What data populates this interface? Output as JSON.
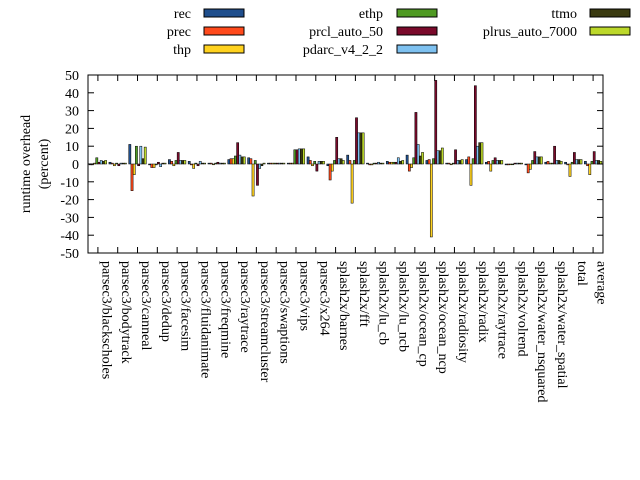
{
  "chart_data": {
    "type": "bar",
    "title": "",
    "xlabel": "",
    "ylabel": "runtime overhead (percent)",
    "ylabel_lines": [
      "runtime overhead",
      "(percent)"
    ],
    "ylim": [
      -50,
      50
    ],
    "yticks": [
      -50,
      -40,
      -30,
      -20,
      -10,
      0,
      10,
      20,
      30,
      40,
      50
    ],
    "grid": false,
    "legend_position": "top",
    "categories": [
      "parsec3/blackscholes",
      "parsec3/bodytrack",
      "parsec3/canneal",
      "parsec3/dedup",
      "parsec3/facesim",
      "parsec3/fluidanimate",
      "parsec3/freqmine",
      "parsec3/raytrace",
      "parsec3/streamcluster",
      "parsec3/swaptions",
      "parsec3/vips",
      "parsec3/x264",
      "splash2x/barnes",
      "splash2x/fft",
      "splash2x/lu_cb",
      "splash2x/lu_ncb",
      "splash2x/ocean_cp",
      "splash2x/ocean_ncp",
      "splash2x/radiosity",
      "splash2x/radix",
      "splash2x/raytrace",
      "splash2x/volrend",
      "splash2x/water_nsquared",
      "splash2x/water_spatial",
      "total",
      "average"
    ],
    "series": [
      {
        "name": "rec",
        "color": "#1f4e8c",
        "values": [
          -0.5,
          1,
          11,
          -0.5,
          2.5,
          1.5,
          0.5,
          2.5,
          3.5,
          0.5,
          0.5,
          4,
          -1,
          5,
          0.5,
          1.5,
          5,
          2,
          0.5,
          2.5,
          1,
          -0.5,
          -0.5,
          1,
          1,
          1.5
        ]
      },
      {
        "name": "prec",
        "color": "#ff4a1c",
        "values": [
          -0.5,
          0.5,
          -15,
          -2,
          1.5,
          -0.5,
          0.5,
          3,
          3,
          0.5,
          0.5,
          2,
          -9,
          2,
          -0.5,
          1,
          -4,
          2.5,
          0.5,
          4,
          1.5,
          -0.5,
          -5,
          1.5,
          -0.5,
          -1
        ]
      },
      {
        "name": "thp",
        "color": "#ffd21f",
        "values": [
          0.5,
          -1,
          -6,
          -2,
          -1,
          -2.5,
          0,
          3,
          -18,
          0.5,
          0.5,
          -1,
          -4,
          -22,
          -0.5,
          1,
          -2,
          -41,
          0,
          -12,
          -4,
          0,
          -3,
          0.5,
          -7,
          -6
        ]
      },
      {
        "name": "ethp",
        "color": "#4f9a23",
        "values": [
          3.5,
          0.5,
          10,
          -0.5,
          2,
          0.5,
          0.5,
          4.5,
          2,
          0.5,
          8,
          1.5,
          2,
          2,
          0.5,
          1,
          3.5,
          3,
          0.5,
          3,
          2,
          0,
          2,
          0.5,
          1,
          1.5
        ]
      },
      {
        "name": "prcl_auto_50",
        "color": "#7a0a2b",
        "values": [
          1,
          -1,
          -1,
          1,
          6.5,
          -1,
          1,
          12,
          -12,
          0.5,
          8,
          -4,
          15,
          26,
          0.5,
          1,
          29,
          47,
          8,
          44,
          3.5,
          0.5,
          7,
          10,
          6.5,
          7
        ]
      },
      {
        "name": "pdarc_v4_2_2",
        "color": "#7ec1f0",
        "values": [
          2,
          0.5,
          10,
          -1.5,
          2,
          1.5,
          0.5,
          5,
          -2.5,
          0.5,
          8.5,
          1.5,
          3,
          17.5,
          1,
          3.5,
          11,
          7.5,
          2,
          10,
          2,
          0.5,
          4,
          2,
          2.5,
          2
        ]
      },
      {
        "name": "ttmo",
        "color": "#3a3a10",
        "values": [
          1.5,
          0.5,
          3,
          0.5,
          2,
          0.5,
          0.5,
          4,
          -1,
          0.5,
          8.5,
          1.5,
          3,
          17.5,
          0.5,
          1.5,
          4.5,
          7.5,
          2,
          12,
          2,
          0.5,
          4,
          2,
          2.5,
          2
        ]
      },
      {
        "name": "plrus_auto_7000",
        "color": "#bcd82a",
        "values": [
          2,
          0.5,
          9.5,
          0.5,
          2,
          0.5,
          0.5,
          4,
          0.5,
          0.5,
          8.5,
          1.5,
          2,
          17.5,
          0.5,
          2,
          6.5,
          9,
          2.5,
          12,
          2,
          0.5,
          4,
          1.5,
          2.5,
          1.5
        ]
      }
    ]
  }
}
